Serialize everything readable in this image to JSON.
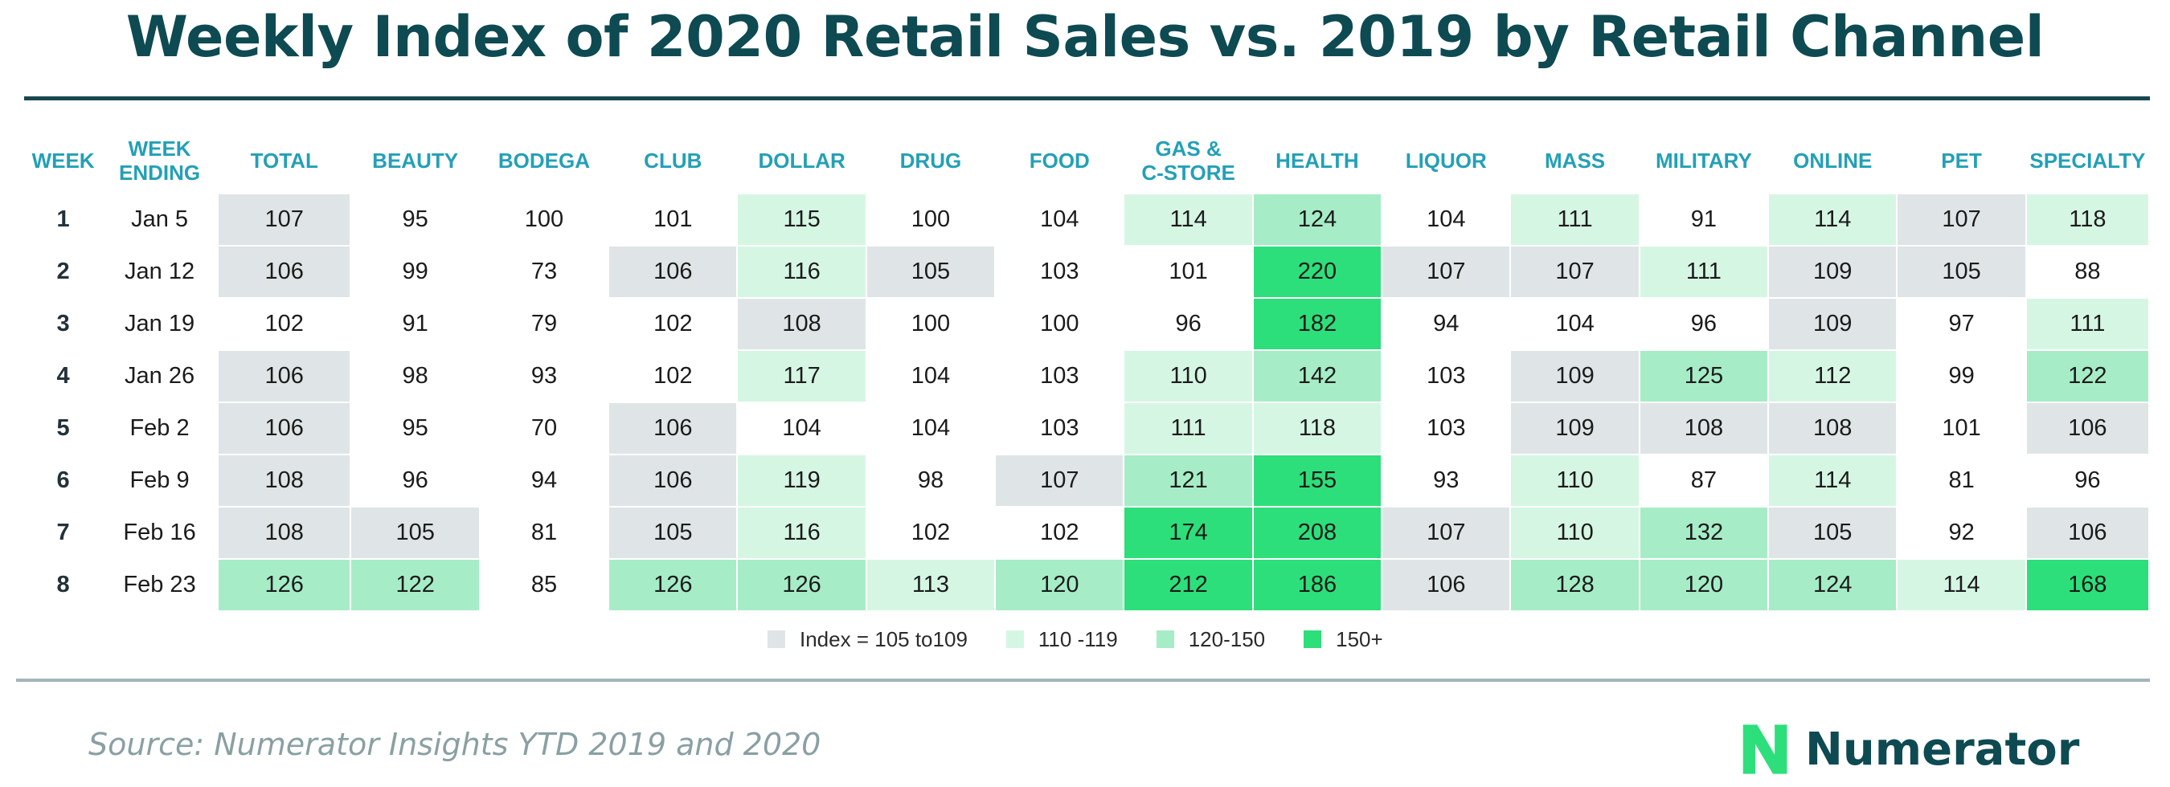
{
  "title": "Weekly Index of 2020 Retail Sales vs. 2019 by Retail Channel",
  "chart_data": {
    "type": "table",
    "title": "Weekly Index of 2020 Retail Sales vs. 2019 by Retail Channel",
    "columns": [
      {
        "line1": "WEEK",
        "line2": ""
      },
      {
        "line1": "WEEK",
        "line2": "ENDING"
      },
      {
        "line1": "TOTAL",
        "line2": ""
      },
      {
        "line1": "BEAUTY",
        "line2": ""
      },
      {
        "line1": "BODEGA",
        "line2": ""
      },
      {
        "line1": "CLUB",
        "line2": ""
      },
      {
        "line1": "DOLLAR",
        "line2": ""
      },
      {
        "line1": "DRUG",
        "line2": ""
      },
      {
        "line1": "FOOD",
        "line2": ""
      },
      {
        "line1": "GAS &",
        "line2": "C-STORE"
      },
      {
        "line1": "HEALTH",
        "line2": ""
      },
      {
        "line1": "LIQUOR",
        "line2": ""
      },
      {
        "line1": "MASS",
        "line2": ""
      },
      {
        "line1": "MILITARY",
        "line2": ""
      },
      {
        "line1": "ONLINE",
        "line2": ""
      },
      {
        "line1": "PET",
        "line2": ""
      },
      {
        "line1": "SPECIALTY",
        "line2": ""
      }
    ],
    "rows": [
      {
        "week": "1",
        "ending": "Jan 5",
        "values": [
          107,
          95,
          100,
          101,
          115,
          100,
          104,
          114,
          124,
          104,
          111,
          91,
          114,
          107,
          118
        ]
      },
      {
        "week": "2",
        "ending": "Jan 12",
        "values": [
          106,
          99,
          73,
          106,
          116,
          105,
          103,
          101,
          220,
          107,
          107,
          111,
          109,
          105,
          88
        ]
      },
      {
        "week": "3",
        "ending": "Jan 19",
        "values": [
          102,
          91,
          79,
          102,
          108,
          100,
          100,
          96,
          182,
          94,
          104,
          96,
          109,
          97,
          111
        ]
      },
      {
        "week": "4",
        "ending": "Jan 26",
        "values": [
          106,
          98,
          93,
          102,
          117,
          104,
          103,
          110,
          142,
          103,
          109,
          125,
          112,
          99,
          122
        ]
      },
      {
        "week": "5",
        "ending": "Feb 2",
        "values": [
          106,
          95,
          70,
          106,
          104,
          104,
          103,
          111,
          118,
          103,
          109,
          108,
          108,
          101,
          106
        ]
      },
      {
        "week": "6",
        "ending": "Feb 9",
        "values": [
          108,
          96,
          94,
          106,
          119,
          98,
          107,
          121,
          155,
          93,
          110,
          87,
          114,
          81,
          96
        ]
      },
      {
        "week": "7",
        "ending": "Feb 16",
        "values": [
          108,
          105,
          81,
          105,
          116,
          102,
          102,
          174,
          208,
          107,
          110,
          132,
          105,
          92,
          106
        ]
      },
      {
        "week": "8",
        "ending": "Feb 23",
        "values": [
          126,
          122,
          85,
          126,
          126,
          113,
          120,
          212,
          186,
          106,
          128,
          120,
          124,
          114,
          168
        ]
      }
    ],
    "legend": [
      {
        "label": "Index = 105 to109",
        "color": "#dfe5e6"
      },
      {
        "label": "110 -119",
        "color": "#d6f6e4"
      },
      {
        "label": "120-150",
        "color": "#a6edc7"
      },
      {
        "label": "150+",
        "color": "#2ddf7a"
      }
    ]
  },
  "footer": {
    "source": "Source: Numerator Insights YTD 2019 and 2020",
    "brand": "Numerator",
    "brand_color": "#0e4a52",
    "logo_color": "#2ddf7a"
  }
}
